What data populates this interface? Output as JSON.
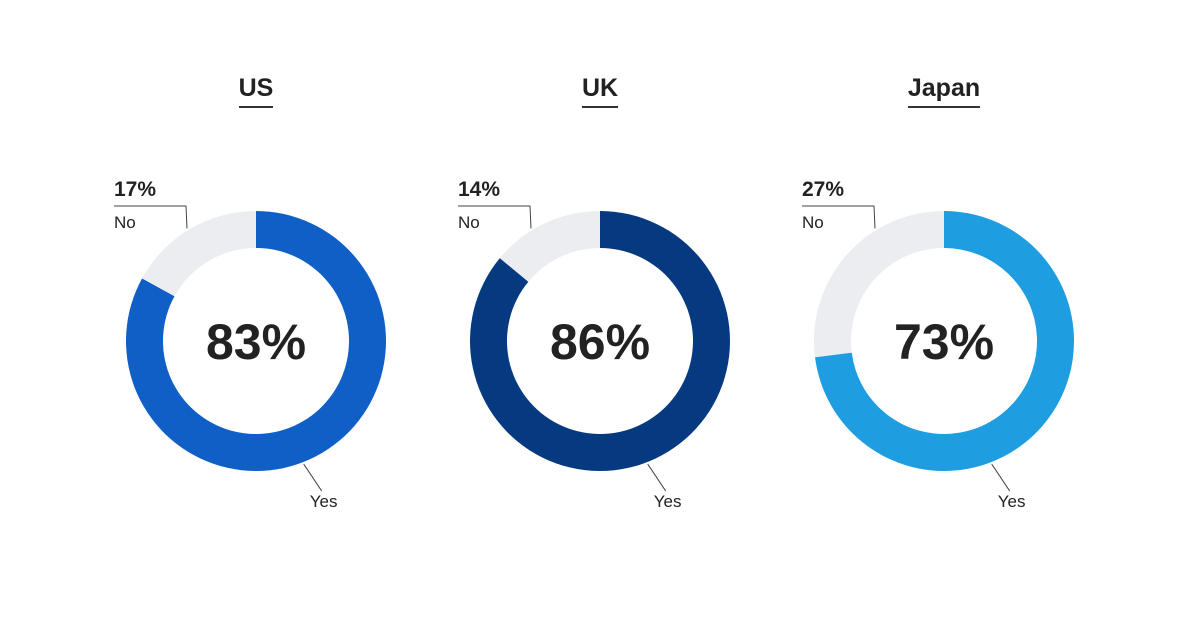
{
  "chart_data": [
    {
      "type": "pie",
      "title": "US",
      "center_label": "83%",
      "categories": [
        "Yes",
        "No"
      ],
      "values": [
        83,
        17
      ],
      "value_labels": [
        "",
        "17%"
      ],
      "colors": [
        "#0f5fc6",
        "#ecedf1"
      ]
    },
    {
      "type": "pie",
      "title": "UK",
      "center_label": "86%",
      "categories": [
        "Yes",
        "No"
      ],
      "values": [
        86,
        14
      ],
      "value_labels": [
        "",
        "14%"
      ],
      "colors": [
        "#053a80",
        "#ecedf1"
      ]
    },
    {
      "type": "pie",
      "title": "Japan",
      "center_label": "73%",
      "categories": [
        "Yes",
        "No"
      ],
      "values": [
        73,
        27
      ],
      "value_labels": [
        "",
        "27%"
      ],
      "colors": [
        "#1e9de0",
        "#ecedf1"
      ]
    }
  ]
}
